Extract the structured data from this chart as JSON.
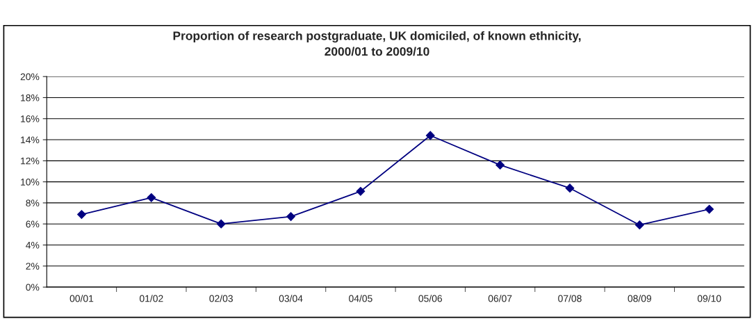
{
  "chart_data": {
    "type": "line",
    "title": "Proportion of research postgraduate, UK domiciled, of known ethnicity,\n2000/01 to 2009/10",
    "categories": [
      "00/01",
      "01/02",
      "02/03",
      "03/04",
      "04/05",
      "05/06",
      "06/07",
      "07/08",
      "08/09",
      "09/10"
    ],
    "series": [
      {
        "color": "#000080",
        "values": [
          6.9,
          8.5,
          6.0,
          6.7,
          9.1,
          14.4,
          11.6,
          9.4,
          5.9,
          7.4
        ]
      }
    ],
    "ylim": [
      0,
      20
    ],
    "yticks": [
      {
        "value": 0,
        "label": "0%"
      },
      {
        "value": 2,
        "label": "2%"
      },
      {
        "value": 4,
        "label": "4%"
      },
      {
        "value": 6,
        "label": "6%"
      },
      {
        "value": 8,
        "label": "8%"
      },
      {
        "value": 10,
        "label": "10%"
      },
      {
        "value": 12,
        "label": "12%"
      },
      {
        "value": 14,
        "label": "14%"
      },
      {
        "value": 16,
        "label": "16%"
      },
      {
        "value": 18,
        "label": "18%"
      },
      {
        "value": 20,
        "label": "20%"
      }
    ],
    "grid": "y",
    "marker": "diamond",
    "line_style": "solid",
    "legend": false
  }
}
